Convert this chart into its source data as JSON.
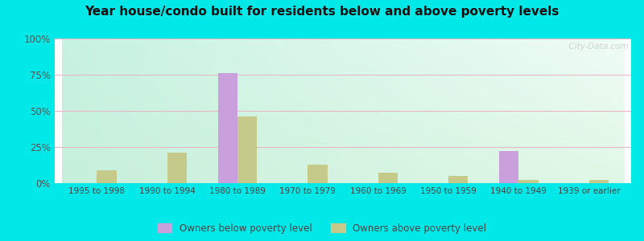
{
  "title": "Year house/condo built for residents below and above poverty levels",
  "categories": [
    "1995 to 1998",
    "1990 to 1994",
    "1980 to 1989",
    "1970 to 1979",
    "1960 to 1969",
    "1950 to 1959",
    "1940 to 1949",
    "1939 or earlier"
  ],
  "below_poverty": [
    0,
    0,
    76,
    0,
    0,
    0,
    22,
    0
  ],
  "above_poverty": [
    9,
    21,
    46,
    13,
    7,
    5,
    2,
    2
  ],
  "below_color": "#c9a0dc",
  "above_color": "#c5c98a",
  "outer_background": "#00e8e8",
  "ylim": [
    0,
    100
  ],
  "yticks": [
    0,
    25,
    50,
    75,
    100
  ],
  "yticklabels": [
    "0%",
    "25%",
    "50%",
    "75%",
    "100%"
  ],
  "bar_width": 0.28,
  "legend_below_label": "Owners below poverty level",
  "legend_above_label": "Owners above poverty level",
  "watermark": "  City-Data.com",
  "grid_color": "#e8b8c8",
  "bg_top_left": "#b0f0e0",
  "bg_top_right": "#e8f8f0",
  "bg_bottom_left": "#a8e8c8",
  "bg_bottom_right": "#d8f0e0"
}
